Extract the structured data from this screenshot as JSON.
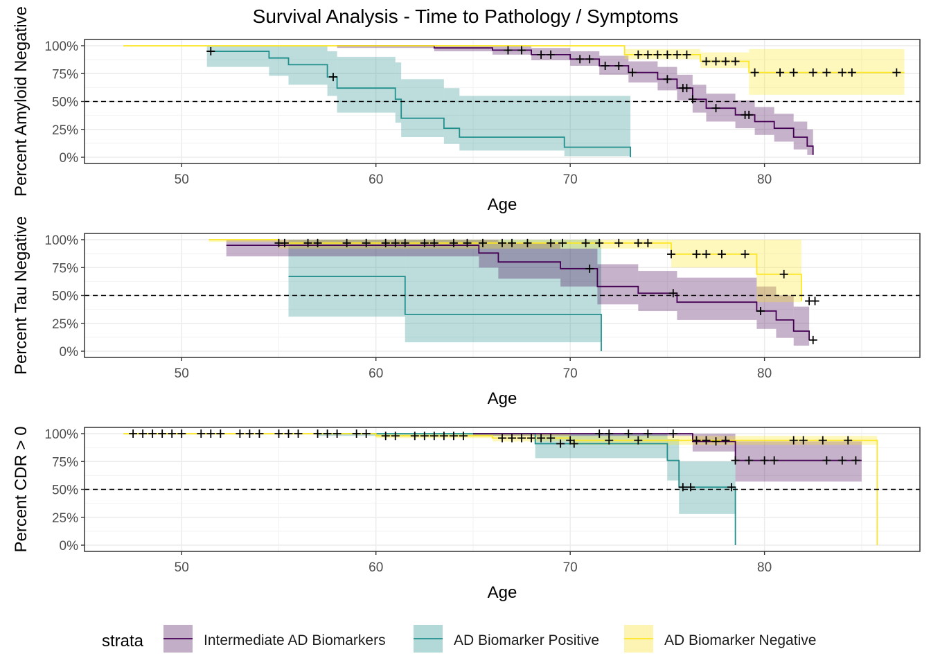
{
  "chart_data": [
    {
      "type": "line",
      "title": "Survival Analysis - Time to Pathology / Symptoms",
      "xlabel": "Age",
      "ylabel": "Percent Amyloid Negative",
      "xlim": [
        45,
        88
      ],
      "ylim": [
        0,
        1
      ],
      "xticks": [
        50,
        60,
        70,
        80
      ],
      "yticks": [
        "0%",
        "25%",
        "50%",
        "75%",
        "100%"
      ],
      "grid": true,
      "reference_line": 0.5,
      "series": [
        {
          "name": "Intermediate AD Biomarkers",
          "x": [
            58,
            63,
            66,
            68,
            70,
            71.5,
            73,
            74.5,
            75.5,
            76.3,
            77,
            78.5,
            79.5,
            80.5,
            81.5,
            82.2,
            82.5
          ],
          "y": [
            1.0,
            0.98,
            0.96,
            0.92,
            0.88,
            0.82,
            0.76,
            0.7,
            0.62,
            0.52,
            0.44,
            0.38,
            0.32,
            0.26,
            0.18,
            0.1,
            0.02
          ],
          "ci_low": [
            0.98,
            0.95,
            0.92,
            0.87,
            0.82,
            0.74,
            0.67,
            0.6,
            0.51,
            0.4,
            0.32,
            0.26,
            0.2,
            0.14,
            0.07,
            0.02,
            0.0
          ],
          "ci_high": [
            1.0,
            1.0,
            1.0,
            0.98,
            0.95,
            0.91,
            0.86,
            0.81,
            0.74,
            0.65,
            0.57,
            0.51,
            0.45,
            0.39,
            0.32,
            0.25,
            0.12
          ],
          "censor_x": [
            66.8,
            67.5,
            68.5,
            69,
            70.5,
            71,
            71.8,
            72.5,
            73.2,
            75,
            75.8,
            76,
            76.3,
            77.5,
            79,
            79.2
          ]
        },
        {
          "name": "AD Biomarker Positive",
          "x": [
            51.3,
            54.5,
            55.5,
            57.5,
            58,
            61,
            61.3,
            63.5,
            64.3,
            69.7,
            73.1
          ],
          "y": [
            0.95,
            0.89,
            0.83,
            0.72,
            0.62,
            0.52,
            0.35,
            0.26,
            0.18,
            0.09,
            0.0
          ],
          "ci_low": [
            0.81,
            0.73,
            0.65,
            0.55,
            0.4,
            0.31,
            0.18,
            0.12,
            0.06,
            0.01,
            0.0
          ],
          "ci_high": [
            1.0,
            1.0,
            1.0,
            0.95,
            0.9,
            0.85,
            0.7,
            0.62,
            0.55,
            0.55,
            0.55
          ],
          "censor_x": [
            51.5,
            57.8
          ]
        },
        {
          "name": "AD Biomarker Negative",
          "x": [
            47,
            72.8,
            76.7,
            79.2,
            87.2
          ],
          "y": [
            1.0,
            0.92,
            0.86,
            0.76,
            0.76
          ],
          "ci_low": [
            0.99,
            0.88,
            0.8,
            0.56,
            0.56
          ],
          "ci_high": [
            1.0,
            0.97,
            0.94,
            0.97,
            0.97
          ],
          "censor_x": [
            73.5,
            74,
            74.5,
            75,
            75.5,
            76,
            77,
            77.5,
            78,
            78.5,
            79.5,
            80.8,
            81.5,
            82.5,
            83.2,
            84,
            84.5,
            86.8
          ]
        }
      ]
    },
    {
      "type": "line",
      "xlabel": "Age",
      "ylabel": "Percent Tau Negative",
      "xlim": [
        45,
        88
      ],
      "ylim": [
        0,
        1
      ],
      "xticks": [
        50,
        60,
        70,
        80
      ],
      "yticks": [
        "0%",
        "25%",
        "50%",
        "75%",
        "100%"
      ],
      "grid": true,
      "reference_line": 0.5,
      "series": [
        {
          "name": "Intermediate AD Biomarkers",
          "x": [
            52.3,
            65.3,
            66.3,
            69.5,
            71.4,
            73.5,
            75.5,
            79.6,
            80.6,
            81.5,
            82.3
          ],
          "y": [
            0.95,
            0.88,
            0.8,
            0.74,
            0.58,
            0.52,
            0.44,
            0.36,
            0.28,
            0.18,
            0.1
          ],
          "ci_low": [
            0.85,
            0.75,
            0.65,
            0.58,
            0.42,
            0.36,
            0.28,
            0.2,
            0.12,
            0.05,
            0.02
          ],
          "ci_high": [
            1.0,
            1.0,
            0.97,
            0.92,
            0.78,
            0.72,
            0.66,
            0.58,
            0.5,
            0.4,
            0.3
          ],
          "censor_x": [
            71,
            75.3,
            79.8,
            82.5
          ]
        },
        {
          "name": "AD Biomarker Positive",
          "x": [
            55.5,
            61.5,
            71.6
          ],
          "y": [
            0.67,
            0.33,
            0.0
          ],
          "ci_low": [
            0.31,
            0.08,
            0.0
          ],
          "ci_high": [
            1.0,
            1.0,
            1.0
          ],
          "censor_x": []
        },
        {
          "name": "AD Biomarker Negative",
          "x": [
            51.4,
            55,
            75.2,
            79.6,
            81.9
          ],
          "y": [
            1.0,
            0.97,
            0.87,
            0.69,
            0.45
          ],
          "ci_low": [
            0.98,
            0.92,
            0.75,
            0.44,
            0.17
          ],
          "ci_high": [
            1.0,
            1.0,
            1.0,
            1.0,
            1.0
          ],
          "censor_x": [
            55,
            55.3,
            56.5,
            57,
            58.5,
            59.5,
            60.5,
            61,
            61.5,
            62.5,
            63,
            64,
            64.7,
            65.5,
            66.5,
            67,
            67.8,
            69,
            69.6,
            70.8,
            71.5,
            72.5,
            73.5,
            74,
            75.2,
            76.5,
            77,
            77.8,
            79,
            81,
            82.3,
            82.6
          ]
        }
      ]
    },
    {
      "type": "line",
      "xlabel": "Age",
      "ylabel": "Percent CDR > 0",
      "xlim": [
        45,
        88
      ],
      "ylim": [
        0,
        1
      ],
      "xticks": [
        50,
        60,
        70,
        80
      ],
      "yticks": [
        "0%",
        "25%",
        "50%",
        "75%",
        "100%"
      ],
      "grid": true,
      "reference_line": 0.5,
      "series": [
        {
          "name": "Intermediate AD Biomarkers",
          "x": [
            65,
            76.3,
            78.5,
            85
          ],
          "y": [
            1.0,
            0.93,
            0.76,
            0.76
          ],
          "ci_low": [
            0.98,
            0.84,
            0.57,
            0.57
          ],
          "ci_high": [
            1.0,
            1.0,
            0.93,
            0.93
          ],
          "censor_x": [
            71.5,
            72,
            73,
            74,
            75.3,
            77.5,
            78.5,
            79.2,
            80,
            80.5,
            83.2,
            84,
            84.7
          ]
        },
        {
          "name": "AD Biomarker Positive",
          "x": [
            57,
            68.2,
            75,
            75.6,
            78.5
          ],
          "y": [
            1.0,
            0.91,
            0.76,
            0.52,
            0.0
          ],
          "ci_low": [
            0.98,
            0.78,
            0.58,
            0.28,
            0.0
          ],
          "ci_high": [
            1.0,
            1.0,
            0.95,
            0.75,
            0.75
          ],
          "censor_x": [
            69.5,
            70.2,
            75.8,
            76.2,
            78.3
          ]
        },
        {
          "name": "AD Biomarker Negative",
          "x": [
            47,
            60,
            66,
            70,
            85.8
          ],
          "y": [
            1.0,
            0.98,
            0.96,
            0.94,
            0.0
          ],
          "ci_low": [
            0.99,
            0.96,
            0.93,
            0.9,
            0.0
          ],
          "ci_high": [
            1.0,
            1.0,
            1.0,
            0.98,
            0.98
          ],
          "censor_x": [
            47.5,
            48,
            48.5,
            49,
            49.5,
            50,
            51,
            51.5,
            52,
            53,
            53.5,
            54,
            55,
            55.5,
            56,
            57,
            57.5,
            58,
            59,
            59.5,
            60.5,
            61,
            62,
            62.5,
            63,
            63.5,
            64,
            64.5,
            66.5,
            67,
            67.5,
            68,
            68.5,
            69,
            70,
            72,
            73.5,
            76.5,
            77,
            78,
            81.5,
            82,
            83,
            84.3
          ]
        }
      ]
    }
  ],
  "legend": {
    "title": "strata",
    "placement": "bottom",
    "items": [
      {
        "label": "Intermediate AD Biomarkers",
        "line_color": "#440154",
        "fill_color": "#c3aec7"
      },
      {
        "label": "AD Biomarker Positive",
        "line_color": "#21908C",
        "fill_color": "#b2d8d7"
      },
      {
        "label": "AD Biomarker Negative",
        "line_color": "#FDE725",
        "fill_color": "#fdf4b3"
      }
    ]
  },
  "style": {
    "fill_opacity": 0.3,
    "reference_line_color": "#000000"
  }
}
